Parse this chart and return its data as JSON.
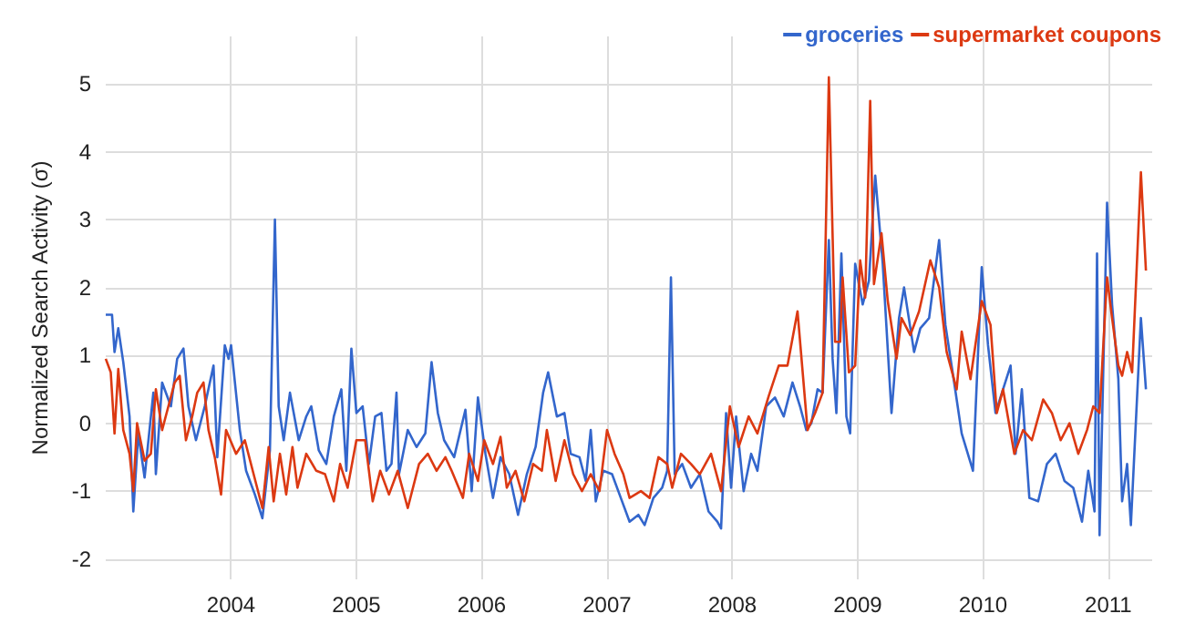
{
  "chart_data": {
    "type": "line",
    "ylabel": "Normalized Search Activity (σ)",
    "legend": "top right",
    "grid": true,
    "marker": "none",
    "line_style": "solid",
    "xlim": [
      2003,
      2011.35
    ],
    "xticks": [
      2004,
      2005,
      2006,
      2007,
      2008,
      2009,
      2010,
      2011
    ],
    "ylim": [
      -2.3,
      5.7
    ],
    "yticks": [
      -2,
      -1,
      0,
      1,
      2,
      3,
      4,
      5
    ],
    "series": [
      {
        "name": "groceries",
        "color": "#3366cc",
        "x": [
          2003.0,
          2003.05,
          2003.07,
          2003.1,
          2003.14,
          2003.19,
          2003.22,
          2003.26,
          2003.31,
          2003.38,
          2003.4,
          2003.45,
          2003.52,
          2003.57,
          2003.62,
          2003.66,
          2003.72,
          2003.79,
          2003.86,
          2003.89,
          2003.95,
          2003.98,
          2004.0,
          2004.07,
          2004.12,
          2004.19,
          2004.25,
          2004.31,
          2004.35,
          2004.38,
          2004.42,
          2004.47,
          2004.54,
          2004.6,
          2004.64,
          2004.7,
          2004.76,
          2004.82,
          2004.88,
          2004.92,
          2004.96,
          2005.0,
          2005.05,
          2005.1,
          2005.15,
          2005.2,
          2005.24,
          2005.28,
          2005.32,
          2005.34,
          2005.41,
          2005.48,
          2005.55,
          2005.6,
          2005.65,
          2005.7,
          2005.78,
          2005.87,
          2005.92,
          2005.97,
          2006.03,
          2006.09,
          2006.15,
          2006.22,
          2006.29,
          2006.36,
          2006.43,
          2006.49,
          2006.53,
          2006.6,
          2006.66,
          2006.71,
          2006.78,
          2006.83,
          2006.87,
          2006.91,
          2006.97,
          2007.04,
          2007.11,
          2007.18,
          2007.25,
          2007.3,
          2007.37,
          2007.44,
          2007.48,
          2007.51,
          2007.54,
          2007.6,
          2007.67,
          2007.74,
          2007.81,
          2007.88,
          2007.91,
          2007.95,
          2007.99,
          2008.03,
          2008.09,
          2008.15,
          2008.2,
          2008.27,
          2008.34,
          2008.41,
          2008.48,
          2008.54,
          2008.59,
          2008.63,
          2008.68,
          2008.72,
          2008.77,
          2008.8,
          2008.83,
          2008.87,
          2008.91,
          2008.94,
          2008.98,
          2009.04,
          2009.09,
          2009.14,
          2009.2,
          2009.27,
          2009.33,
          2009.37,
          2009.45,
          2009.5,
          2009.57,
          2009.65,
          2009.7,
          2009.77,
          2009.83,
          2009.92,
          2009.99,
          2010.04,
          2010.1,
          2010.22,
          2010.26,
          2010.31,
          2010.37,
          2010.44,
          2010.51,
          2010.58,
          2010.65,
          2010.72,
          2010.79,
          2010.84,
          2010.89,
          2010.91,
          2010.93,
          2010.99,
          2011.03,
          2011.08,
          2011.11,
          2011.15,
          2011.18,
          2011.26,
          2011.3
        ],
        "values": [
          1.6,
          1.6,
          1.05,
          1.4,
          0.9,
          0.1,
          -1.3,
          -0.15,
          -0.8,
          0.45,
          -0.75,
          0.6,
          0.25,
          0.95,
          1.1,
          0.25,
          -0.25,
          0.25,
          0.85,
          -0.5,
          1.15,
          0.95,
          1.15,
          -0.1,
          -0.7,
          -1.05,
          -1.4,
          -0.4,
          3.0,
          0.25,
          -0.25,
          0.45,
          -0.25,
          0.1,
          0.25,
          -0.4,
          -0.6,
          0.1,
          0.5,
          -0.7,
          1.1,
          0.15,
          0.25,
          -0.6,
          0.1,
          0.15,
          -0.7,
          -0.6,
          0.45,
          -0.75,
          -0.1,
          -0.35,
          -0.15,
          0.9,
          0.15,
          -0.25,
          -0.5,
          0.2,
          -1.0,
          0.38,
          -0.45,
          -1.1,
          -0.5,
          -0.75,
          -1.35,
          -0.75,
          -0.35,
          0.45,
          0.75,
          0.1,
          0.15,
          -0.45,
          -0.5,
          -0.85,
          -0.1,
          -1.15,
          -0.7,
          -0.75,
          -1.1,
          -1.45,
          -1.35,
          -1.5,
          -1.1,
          -0.95,
          -0.7,
          2.15,
          -0.75,
          -0.6,
          -0.95,
          -0.75,
          -1.3,
          -1.45,
          -1.55,
          0.15,
          -0.95,
          0.1,
          -1.0,
          -0.45,
          -0.7,
          0.25,
          0.38,
          0.1,
          0.6,
          0.25,
          -0.1,
          0.0,
          0.5,
          0.45,
          2.7,
          0.95,
          0.15,
          2.5,
          0.1,
          -0.15,
          2.35,
          1.75,
          2.1,
          3.65,
          2.35,
          0.15,
          1.55,
          2.0,
          1.05,
          1.4,
          1.55,
          2.7,
          1.45,
          0.6,
          -0.15,
          -0.7,
          2.3,
          1.15,
          0.15,
          0.85,
          -0.45,
          0.5,
          -1.1,
          -1.15,
          -0.6,
          -0.45,
          -0.85,
          -0.95,
          -1.45,
          -0.7,
          -1.3,
          2.5,
          -1.65,
          3.25,
          1.75,
          0.65,
          -1.15,
          -0.6,
          -1.5,
          1.55,
          0.5
        ]
      },
      {
        "name": "supermarket coupons",
        "color": "#dc3912",
        "x": [
          2003.0,
          2003.04,
          2003.07,
          2003.1,
          2003.14,
          2003.19,
          2003.22,
          2003.25,
          2003.31,
          2003.36,
          2003.4,
          2003.45,
          2003.5,
          2003.55,
          2003.59,
          2003.64,
          2003.69,
          2003.73,
          2003.78,
          2003.82,
          2003.87,
          2003.92,
          2003.96,
          2004.04,
          2004.11,
          2004.18,
          2004.25,
          2004.3,
          2004.34,
          2004.39,
          2004.44,
          2004.49,
          2004.53,
          2004.6,
          2004.68,
          2004.75,
          2004.82,
          2004.87,
          2004.93,
          2005.0,
          2005.07,
          2005.13,
          2005.19,
          2005.26,
          2005.33,
          2005.41,
          2005.5,
          2005.57,
          2005.64,
          2005.71,
          2005.76,
          2005.85,
          2005.9,
          2005.97,
          2006.02,
          2006.09,
          2006.15,
          2006.2,
          2006.27,
          2006.34,
          2006.41,
          2006.48,
          2006.52,
          2006.59,
          2006.66,
          2006.73,
          2006.8,
          2006.87,
          2006.94,
          2007.0,
          2007.06,
          2007.13,
          2007.18,
          2007.27,
          2007.34,
          2007.41,
          2007.48,
          2007.52,
          2007.59,
          2007.67,
          2007.74,
          2007.83,
          2007.91,
          2007.98,
          2008.05,
          2008.13,
          2008.2,
          2008.29,
          2008.37,
          2008.44,
          2008.52,
          2008.6,
          2008.66,
          2008.72,
          2008.77,
          2008.82,
          2008.86,
          2008.88,
          2008.93,
          2008.98,
          2009.02,
          2009.06,
          2009.1,
          2009.13,
          2009.19,
          2009.24,
          2009.31,
          2009.35,
          2009.42,
          2009.49,
          2009.58,
          2009.65,
          2009.71,
          2009.79,
          2009.83,
          2009.9,
          2009.99,
          2010.06,
          2010.11,
          2010.16,
          2010.25,
          2010.32,
          2010.39,
          2010.48,
          2010.55,
          2010.62,
          2010.69,
          2010.76,
          2010.83,
          2010.88,
          2010.93,
          2010.99,
          2011.03,
          2011.08,
          2011.11,
          2011.15,
          2011.19,
          2011.26,
          2011.3
        ],
        "values": [
          0.95,
          0.75,
          -0.15,
          0.8,
          -0.1,
          -0.45,
          -1.0,
          0.0,
          -0.55,
          -0.45,
          0.5,
          -0.1,
          0.25,
          0.6,
          0.7,
          -0.25,
          0.1,
          0.45,
          0.6,
          -0.1,
          -0.5,
          -1.05,
          -0.1,
          -0.45,
          -0.25,
          -0.75,
          -1.25,
          -0.35,
          -1.15,
          -0.45,
          -1.05,
          -0.35,
          -0.95,
          -0.45,
          -0.7,
          -0.75,
          -1.15,
          -0.6,
          -0.95,
          -0.25,
          -0.25,
          -1.15,
          -0.7,
          -1.05,
          -0.7,
          -1.25,
          -0.6,
          -0.45,
          -0.7,
          -0.5,
          -0.7,
          -1.1,
          -0.45,
          -0.85,
          -0.25,
          -0.6,
          -0.2,
          -0.95,
          -0.7,
          -1.15,
          -0.6,
          -0.7,
          -0.1,
          -0.85,
          -0.25,
          -0.75,
          -1.0,
          -0.75,
          -1.0,
          -0.1,
          -0.45,
          -0.75,
          -1.1,
          -1.0,
          -1.1,
          -0.5,
          -0.6,
          -0.95,
          -0.45,
          -0.6,
          -0.75,
          -0.45,
          -1.0,
          0.25,
          -0.35,
          0.1,
          -0.15,
          0.4,
          0.85,
          0.85,
          1.65,
          -0.1,
          0.15,
          0.45,
          5.1,
          1.2,
          1.2,
          2.15,
          0.75,
          0.85,
          2.4,
          1.85,
          4.75,
          2.05,
          2.8,
          1.8,
          0.95,
          1.55,
          1.3,
          1.65,
          2.4,
          2.0,
          1.05,
          0.5,
          1.35,
          0.65,
          1.8,
          1.45,
          0.15,
          0.5,
          -0.45,
          -0.1,
          -0.25,
          0.35,
          0.15,
          -0.25,
          0.0,
          -0.45,
          -0.1,
          0.25,
          0.15,
          2.15,
          1.55,
          0.85,
          0.7,
          1.05,
          0.75,
          3.7,
          2.25
        ]
      }
    ]
  }
}
